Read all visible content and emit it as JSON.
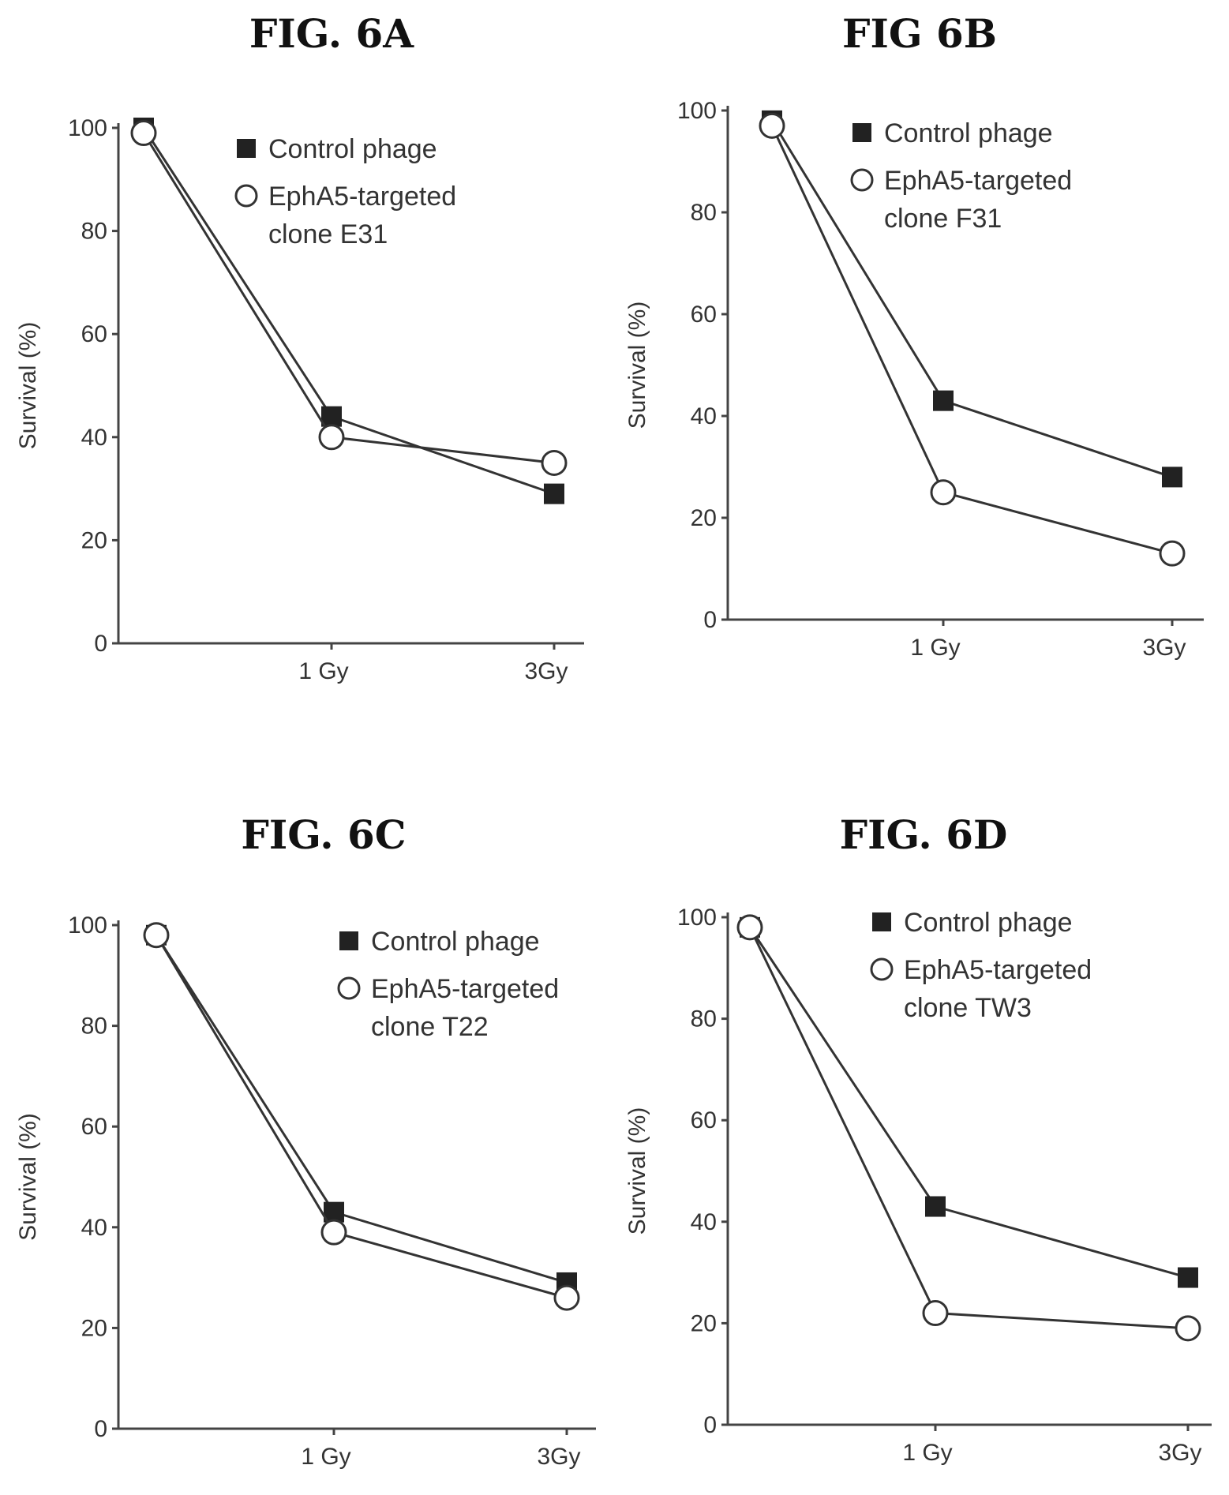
{
  "chart_data": [
    {
      "type": "line",
      "title": "FIG. 6A",
      "ylabel": "Survival (%)",
      "ylim": [
        0,
        100
      ],
      "yticks": [
        "0",
        "20",
        "40",
        "60",
        "80",
        "100"
      ],
      "categories": [
        "",
        "1 Gy",
        "3Gy"
      ],
      "legend_position": "top-right",
      "series": [
        {
          "name": "Control phage",
          "marker": "filled-square",
          "values": [
            100,
            44,
            29
          ]
        },
        {
          "name": "EphA5-targeted clone E31",
          "marker": "open-circle",
          "values": [
            99,
            40,
            35
          ]
        }
      ]
    },
    {
      "type": "line",
      "title": "FIG 6B",
      "ylabel": "Survival (%)",
      "ylim": [
        0,
        100
      ],
      "yticks": [
        "0",
        "20",
        "40",
        "60",
        "80",
        "100"
      ],
      "categories": [
        "",
        "1 Gy",
        "3Gy"
      ],
      "legend_position": "top-right",
      "series": [
        {
          "name": "Control phage",
          "marker": "filled-square",
          "values": [
            98,
            43,
            28
          ]
        },
        {
          "name": "EphA5-targeted clone F31",
          "marker": "open-circle",
          "values": [
            97,
            25,
            13
          ]
        }
      ]
    },
    {
      "type": "line",
      "title": "FIG. 6C",
      "ylabel": "Survival (%)",
      "ylim": [
        0,
        100
      ],
      "yticks": [
        "0",
        "20",
        "40",
        "60",
        "80",
        "100"
      ],
      "categories": [
        "",
        "1 Gy",
        "3Gy"
      ],
      "legend_position": "top-right",
      "series": [
        {
          "name": "Control phage",
          "marker": "filled-square",
          "values": [
            98,
            43,
            29
          ]
        },
        {
          "name": "EphA5-targeted clone T22",
          "marker": "open-circle",
          "values": [
            98,
            39,
            26
          ]
        }
      ]
    },
    {
      "type": "line",
      "title": "FIG. 6D",
      "ylabel": "Survival (%)",
      "ylim": [
        0,
        100
      ],
      "yticks": [
        "0",
        "20",
        "40",
        "60",
        "80",
        "100"
      ],
      "categories": [
        "",
        "1 Gy",
        "3Gy"
      ],
      "legend_position": "top-right",
      "series": [
        {
          "name": "Control phage",
          "marker": "filled-square",
          "values": [
            98,
            43,
            29
          ]
        },
        {
          "name": "EphA5-targeted clone TW3",
          "marker": "open-circle",
          "values": [
            98,
            22,
            19
          ]
        }
      ]
    }
  ]
}
